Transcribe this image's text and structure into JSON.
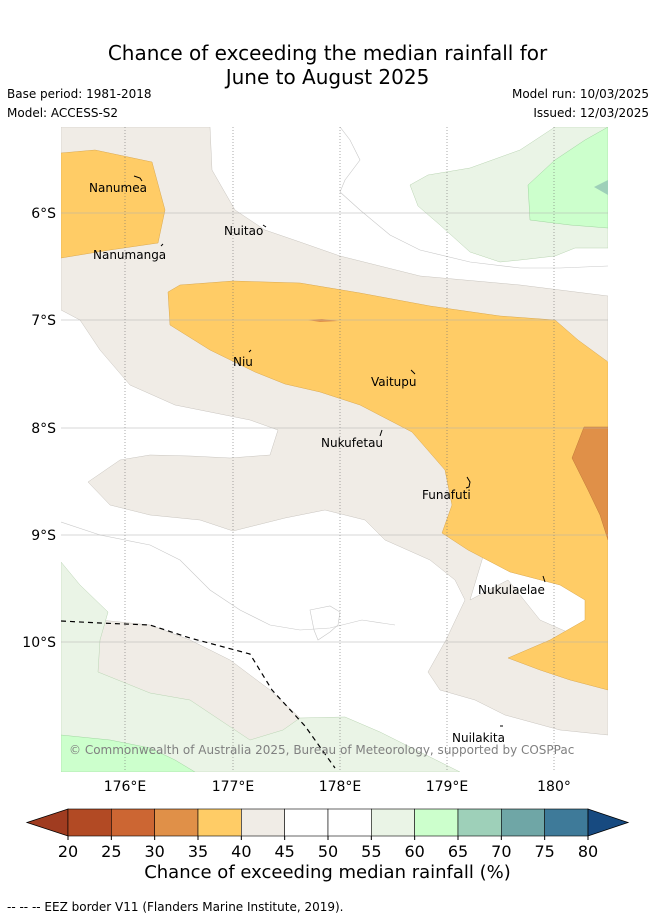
{
  "header": {
    "title_line1": "Chance of exceeding the median rainfall for",
    "title_line2": "June to August 2025",
    "base_period": "Base period: 1981-2018",
    "model": "Model: ACCESS-S2",
    "model_run": "Model run: 10/03/2025",
    "issued": "Issued: 12/03/2025"
  },
  "map": {
    "x_ticks": [
      "176°E",
      "177°E",
      "178°E",
      "179°E",
      "180°"
    ],
    "y_ticks": [
      "6°S",
      "7°S",
      "8°S",
      "9°S",
      "10°S"
    ],
    "places": [
      "Nanumea",
      "Nanumanga",
      "Nuitao",
      "Niu",
      "Vaitupu",
      "Nukufetau",
      "Funafuti",
      "Nukulaelae",
      "Nuilakita"
    ],
    "copyright": "© Commonwealth of Australia 2025, Bureau of Meteorology, supported by COSPPac"
  },
  "colorbar": {
    "ticks": [
      "20",
      "25",
      "30",
      "35",
      "40",
      "45",
      "50",
      "55",
      "60",
      "65",
      "70",
      "75",
      "80"
    ],
    "colors": [
      "#b24a24",
      "#cc6633",
      "#e09048",
      "#ffcc66",
      "#f0ece6",
      "#ffffff",
      "#ffffff",
      "#eaf4e6",
      "#ccffcc",
      "#9ed0b9",
      "#6fa6a6",
      "#3e7a99"
    ],
    "under_color": "#a03c20",
    "over_color": "#174a80",
    "title": "Chance of exceeding median rainfall (%)"
  },
  "footer": {
    "eez_note": "-- -- -- EEZ border V11 (Flanders Marine Institute, 2019)."
  }
}
